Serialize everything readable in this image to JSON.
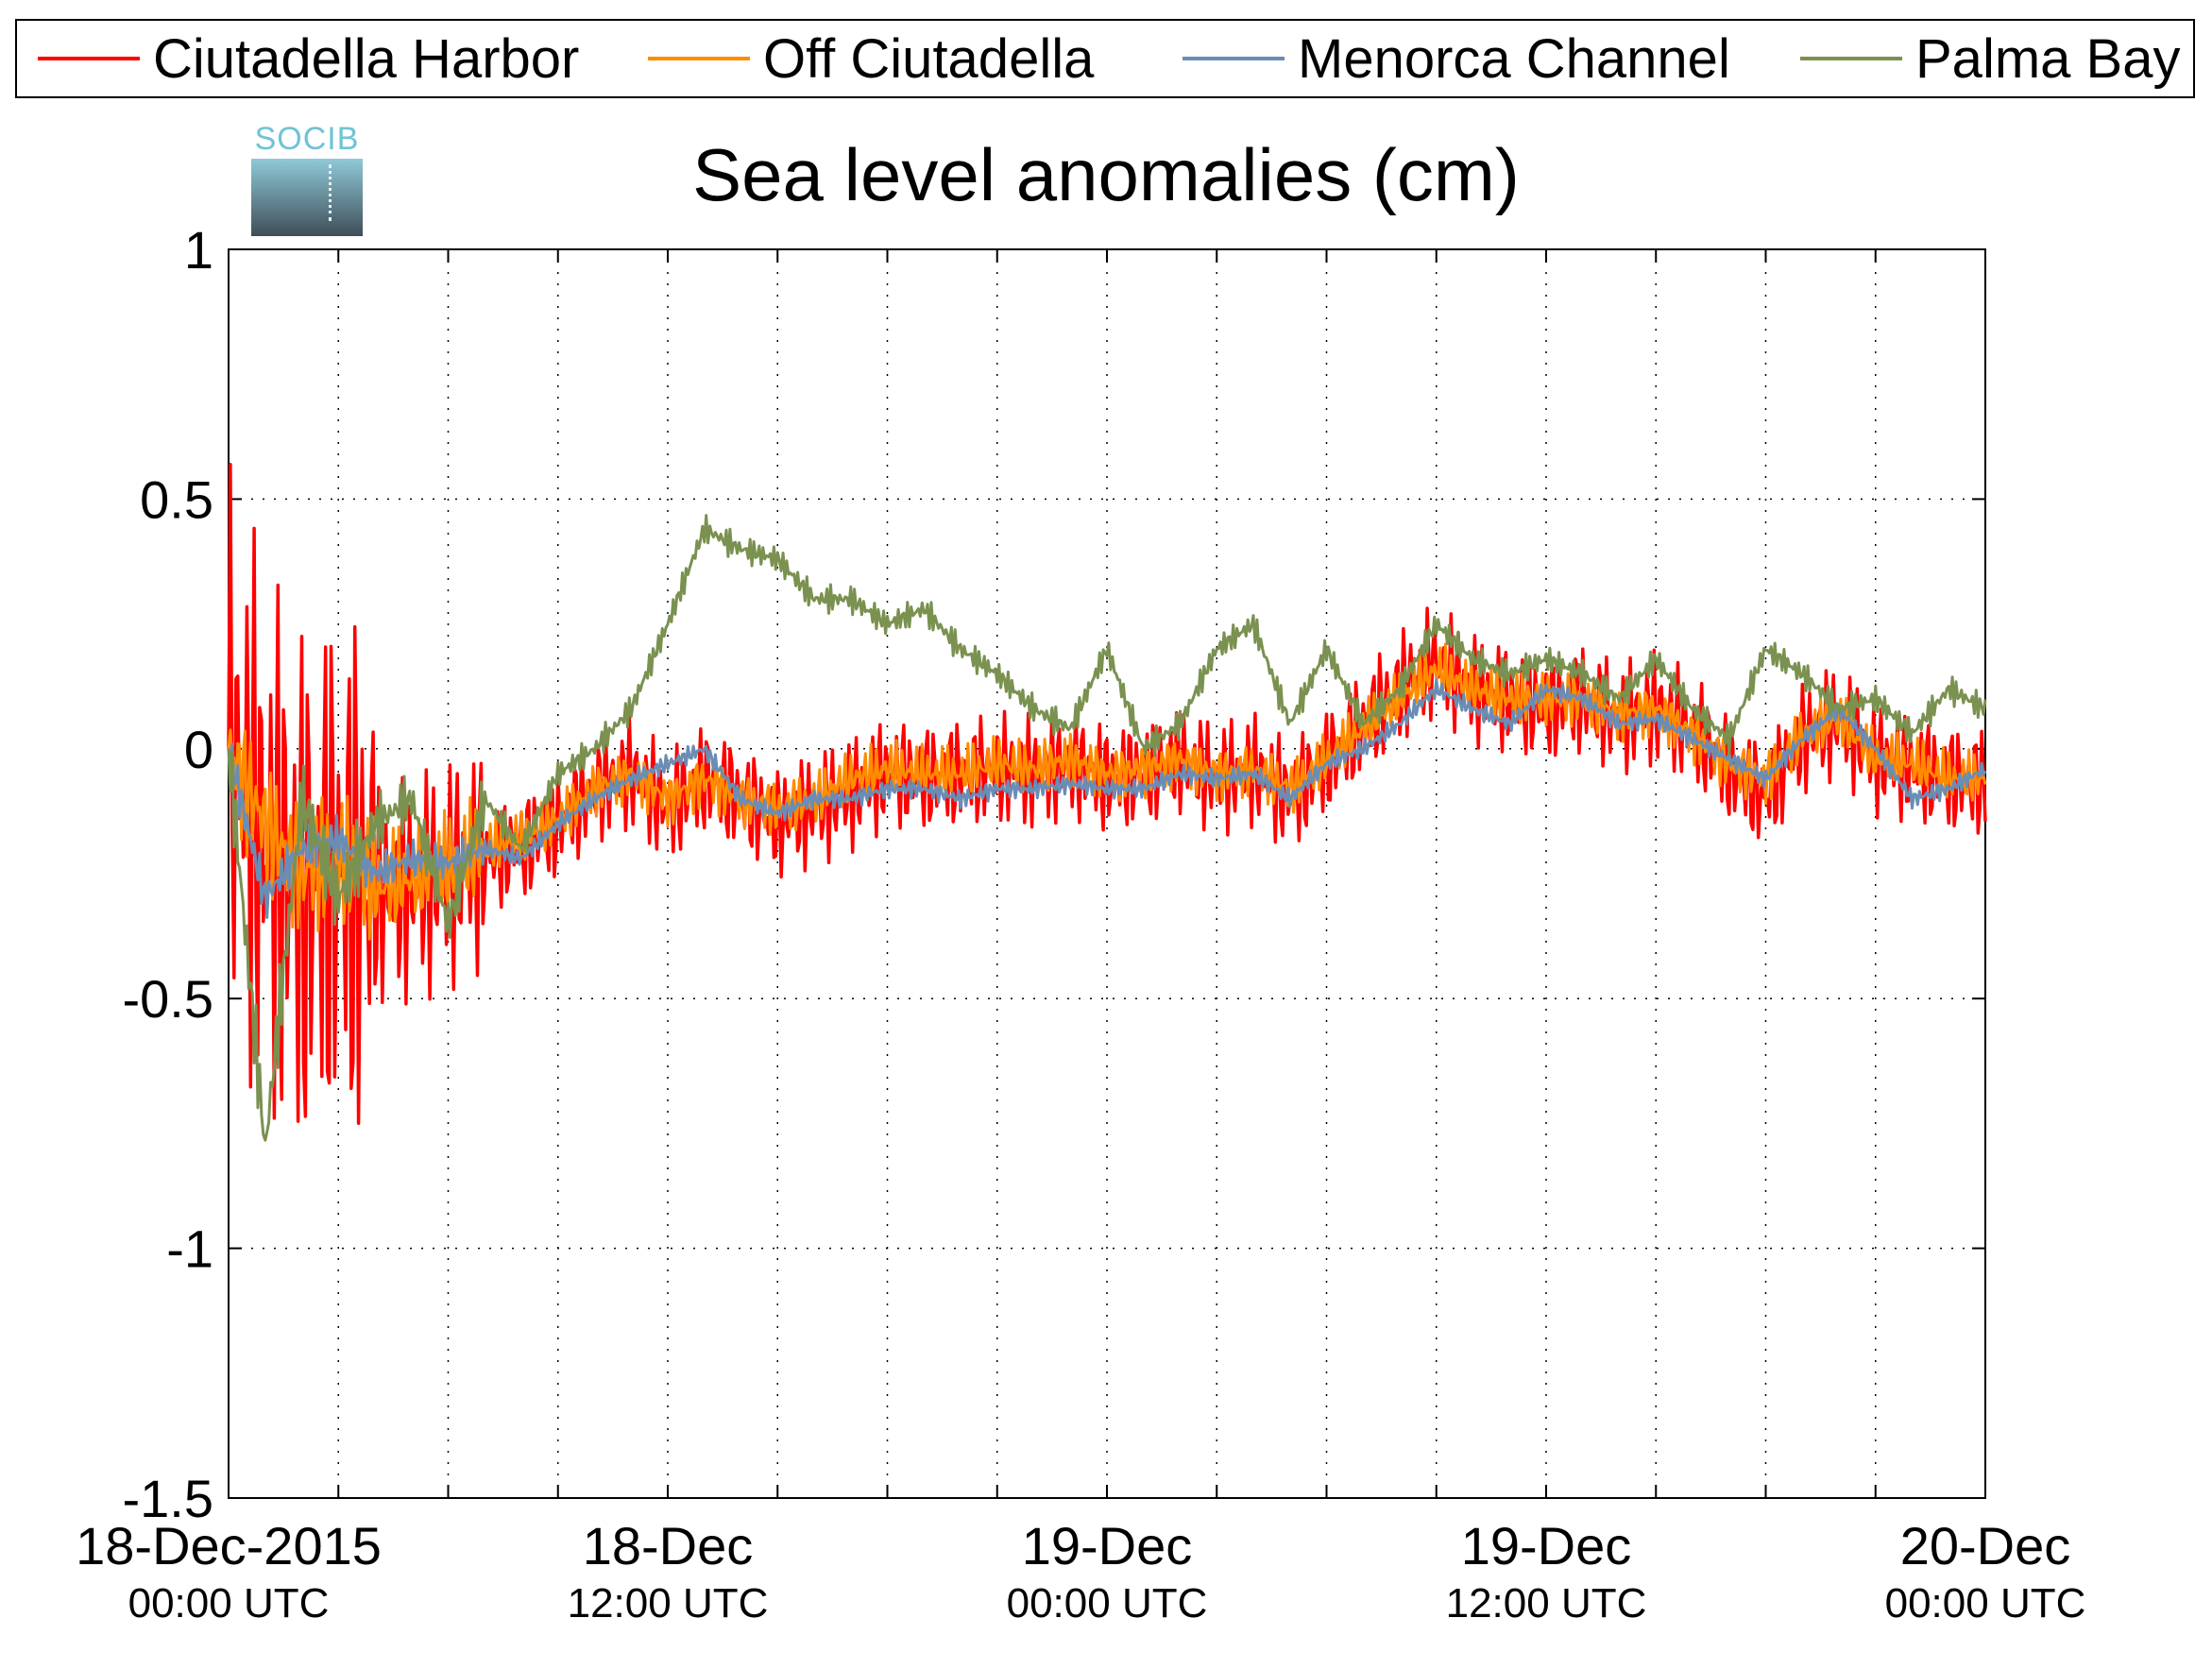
{
  "chart_data": {
    "type": "line",
    "title": "Sea level anomalies (cm)",
    "logo_text": "SOCIB",
    "xlabel": "",
    "ylabel": "",
    "ylim": [
      -1.5,
      1
    ],
    "xlim_hours": [
      0,
      48
    ],
    "y_ticks": [
      "1",
      "0.5",
      "0",
      "-0.5",
      "-1",
      "-1.5"
    ],
    "x_tick_labels": [
      {
        "main": "18-Dec-2015",
        "sub": "00:00 UTC"
      },
      {
        "main": "18-Dec",
        "sub": "12:00 UTC"
      },
      {
        "main": "19-Dec",
        "sub": "00:00 UTC"
      },
      {
        "main": "19-Dec",
        "sub": "12:00 UTC"
      },
      {
        "main": "20-Dec",
        "sub": "00:00 UTC"
      }
    ],
    "grid": true,
    "legend_position": "top",
    "x_unit_note": "hours",
    "x": [
      0,
      1,
      2,
      3,
      4,
      5,
      6,
      7,
      8,
      9,
      10,
      11,
      12,
      13,
      14,
      15,
      16,
      17,
      18,
      19,
      20,
      21,
      22,
      23,
      24,
      25,
      26,
      27,
      28,
      29,
      30,
      31,
      32,
      33,
      34,
      35,
      36,
      37,
      38,
      39,
      40,
      41,
      42,
      43,
      44,
      45,
      46,
      47,
      48
    ],
    "series": [
      {
        "name": "Ciutadella Harbor",
        "color": "#ff0000",
        "values": [
          0.0,
          -0.2,
          -0.3,
          -0.25,
          -0.3,
          -0.28,
          -0.25,
          -0.22,
          -0.2,
          -0.15,
          -0.08,
          -0.05,
          -0.12,
          -0.06,
          -0.1,
          -0.15,
          -0.12,
          -0.09,
          -0.05,
          -0.06,
          -0.05,
          -0.04,
          -0.05,
          -0.03,
          -0.06,
          -0.05,
          -0.02,
          -0.06,
          -0.04,
          -0.1,
          -0.03,
          0.05,
          0.12,
          0.18,
          0.12,
          0.1,
          0.08,
          0.1,
          0.06,
          0.08,
          0.04,
          -0.04,
          -0.1,
          0.02,
          0.06,
          -0.02,
          -0.04,
          -0.06,
          -0.07
        ]
      },
      {
        "name": "Off Ciutadella",
        "color": "#ff8c00",
        "values": [
          0.0,
          -0.15,
          -0.25,
          -0.22,
          -0.28,
          -0.26,
          -0.24,
          -0.2,
          -0.18,
          -0.14,
          -0.08,
          -0.05,
          -0.1,
          -0.06,
          -0.1,
          -0.12,
          -0.1,
          -0.06,
          -0.04,
          -0.05,
          -0.05,
          -0.03,
          -0.04,
          -0.02,
          -0.05,
          -0.04,
          -0.02,
          -0.05,
          -0.04,
          -0.08,
          -0.02,
          0.04,
          0.1,
          0.16,
          0.12,
          0.1,
          0.1,
          0.1,
          0.07,
          0.08,
          0.03,
          -0.03,
          -0.06,
          0.03,
          0.06,
          -0.02,
          -0.03,
          -0.06,
          -0.06
        ]
      },
      {
        "name": "Menorca Channel",
        "color": "#6a8db5",
        "values": [
          0.0,
          -0.3,
          -0.2,
          -0.18,
          -0.25,
          -0.22,
          -0.23,
          -0.2,
          -0.22,
          -0.15,
          -0.1,
          -0.06,
          -0.03,
          0.0,
          -0.1,
          -0.13,
          -0.1,
          -0.1,
          -0.08,
          -0.08,
          -0.1,
          -0.08,
          -0.08,
          -0.07,
          -0.08,
          -0.08,
          -0.05,
          -0.06,
          -0.05,
          -0.1,
          -0.03,
          0.0,
          0.05,
          0.12,
          0.08,
          0.05,
          0.12,
          0.1,
          0.05,
          0.06,
          0.02,
          -0.02,
          -0.06,
          0.02,
          0.08,
          0.0,
          -0.1,
          -0.08,
          -0.04
        ]
      },
      {
        "name": "Palma Bay",
        "color": "#7a9150",
        "values": [
          0.0,
          -0.8,
          -0.1,
          -0.3,
          -0.15,
          -0.1,
          -0.35,
          -0.1,
          -0.2,
          -0.05,
          0.0,
          0.08,
          0.25,
          0.44,
          0.4,
          0.38,
          0.3,
          0.3,
          0.25,
          0.28,
          0.2,
          0.15,
          0.08,
          0.04,
          0.2,
          0.0,
          0.05,
          0.2,
          0.25,
          0.05,
          0.2,
          0.05,
          0.12,
          0.25,
          0.18,
          0.15,
          0.18,
          0.15,
          0.1,
          0.18,
          0.08,
          0.02,
          0.2,
          0.15,
          0.08,
          0.1,
          0.03,
          0.12,
          0.08
        ]
      }
    ]
  }
}
